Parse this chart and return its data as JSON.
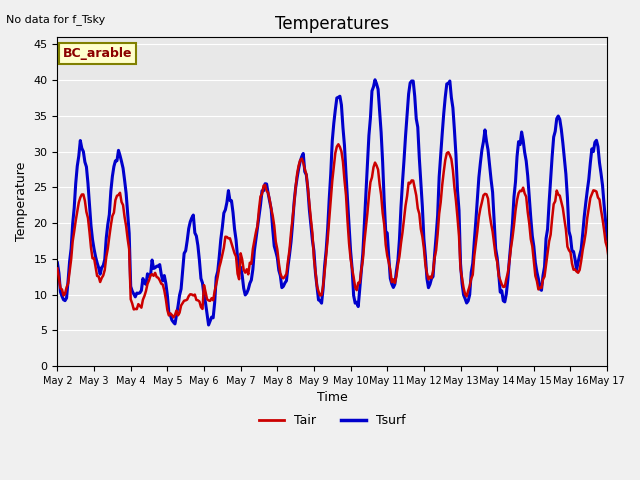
{
  "title": "Temperatures",
  "xlabel": "Time",
  "ylabel": "Temperature",
  "note": "No data for f_Tsky",
  "site_label": "BC_arable",
  "ylim": [
    0,
    46
  ],
  "yticks": [
    0,
    5,
    10,
    15,
    20,
    25,
    30,
    35,
    40,
    45
  ],
  "bg_color": "#e8e8e8",
  "fig_color": "#f0f0f0",
  "tair_color": "#cc0000",
  "tsurf_color": "#0000cc",
  "tair_lw": 1.8,
  "tsurf_lw": 2.2,
  "xtick_labels": [
    "May 2",
    "May 3",
    "May 4",
    "May 5",
    "May 6",
    "May 7",
    "May 8",
    "May 9",
    "May 10",
    "May 11",
    "May 12",
    "May 13",
    "May 14",
    "May 15",
    "May 16",
    "May 17"
  ],
  "xtick_positions": [
    2,
    3,
    4,
    5,
    6,
    7,
    8,
    9,
    10,
    11,
    12,
    13,
    14,
    15,
    16,
    17
  ],
  "daily_max_tair": [
    24,
    24,
    13,
    10,
    18,
    25,
    29,
    31,
    28,
    26,
    30,
    24,
    25,
    24,
    25,
    24
  ],
  "daily_min_tair": [
    10,
    12,
    8,
    7,
    9,
    13,
    12,
    10,
    11,
    12,
    12,
    10,
    11,
    11,
    13,
    14
  ],
  "daily_max_tsurf": [
    31,
    30,
    14,
    20,
    24,
    25.5,
    29,
    38,
    40,
    40,
    40,
    32,
    32,
    35,
    31,
    33
  ],
  "daily_min_tsurf": [
    9,
    13,
    10,
    6,
    6,
    10,
    11,
    9,
    8,
    11,
    11,
    9,
    9,
    11,
    14,
    14
  ],
  "days_start": 2,
  "num_days": 16
}
